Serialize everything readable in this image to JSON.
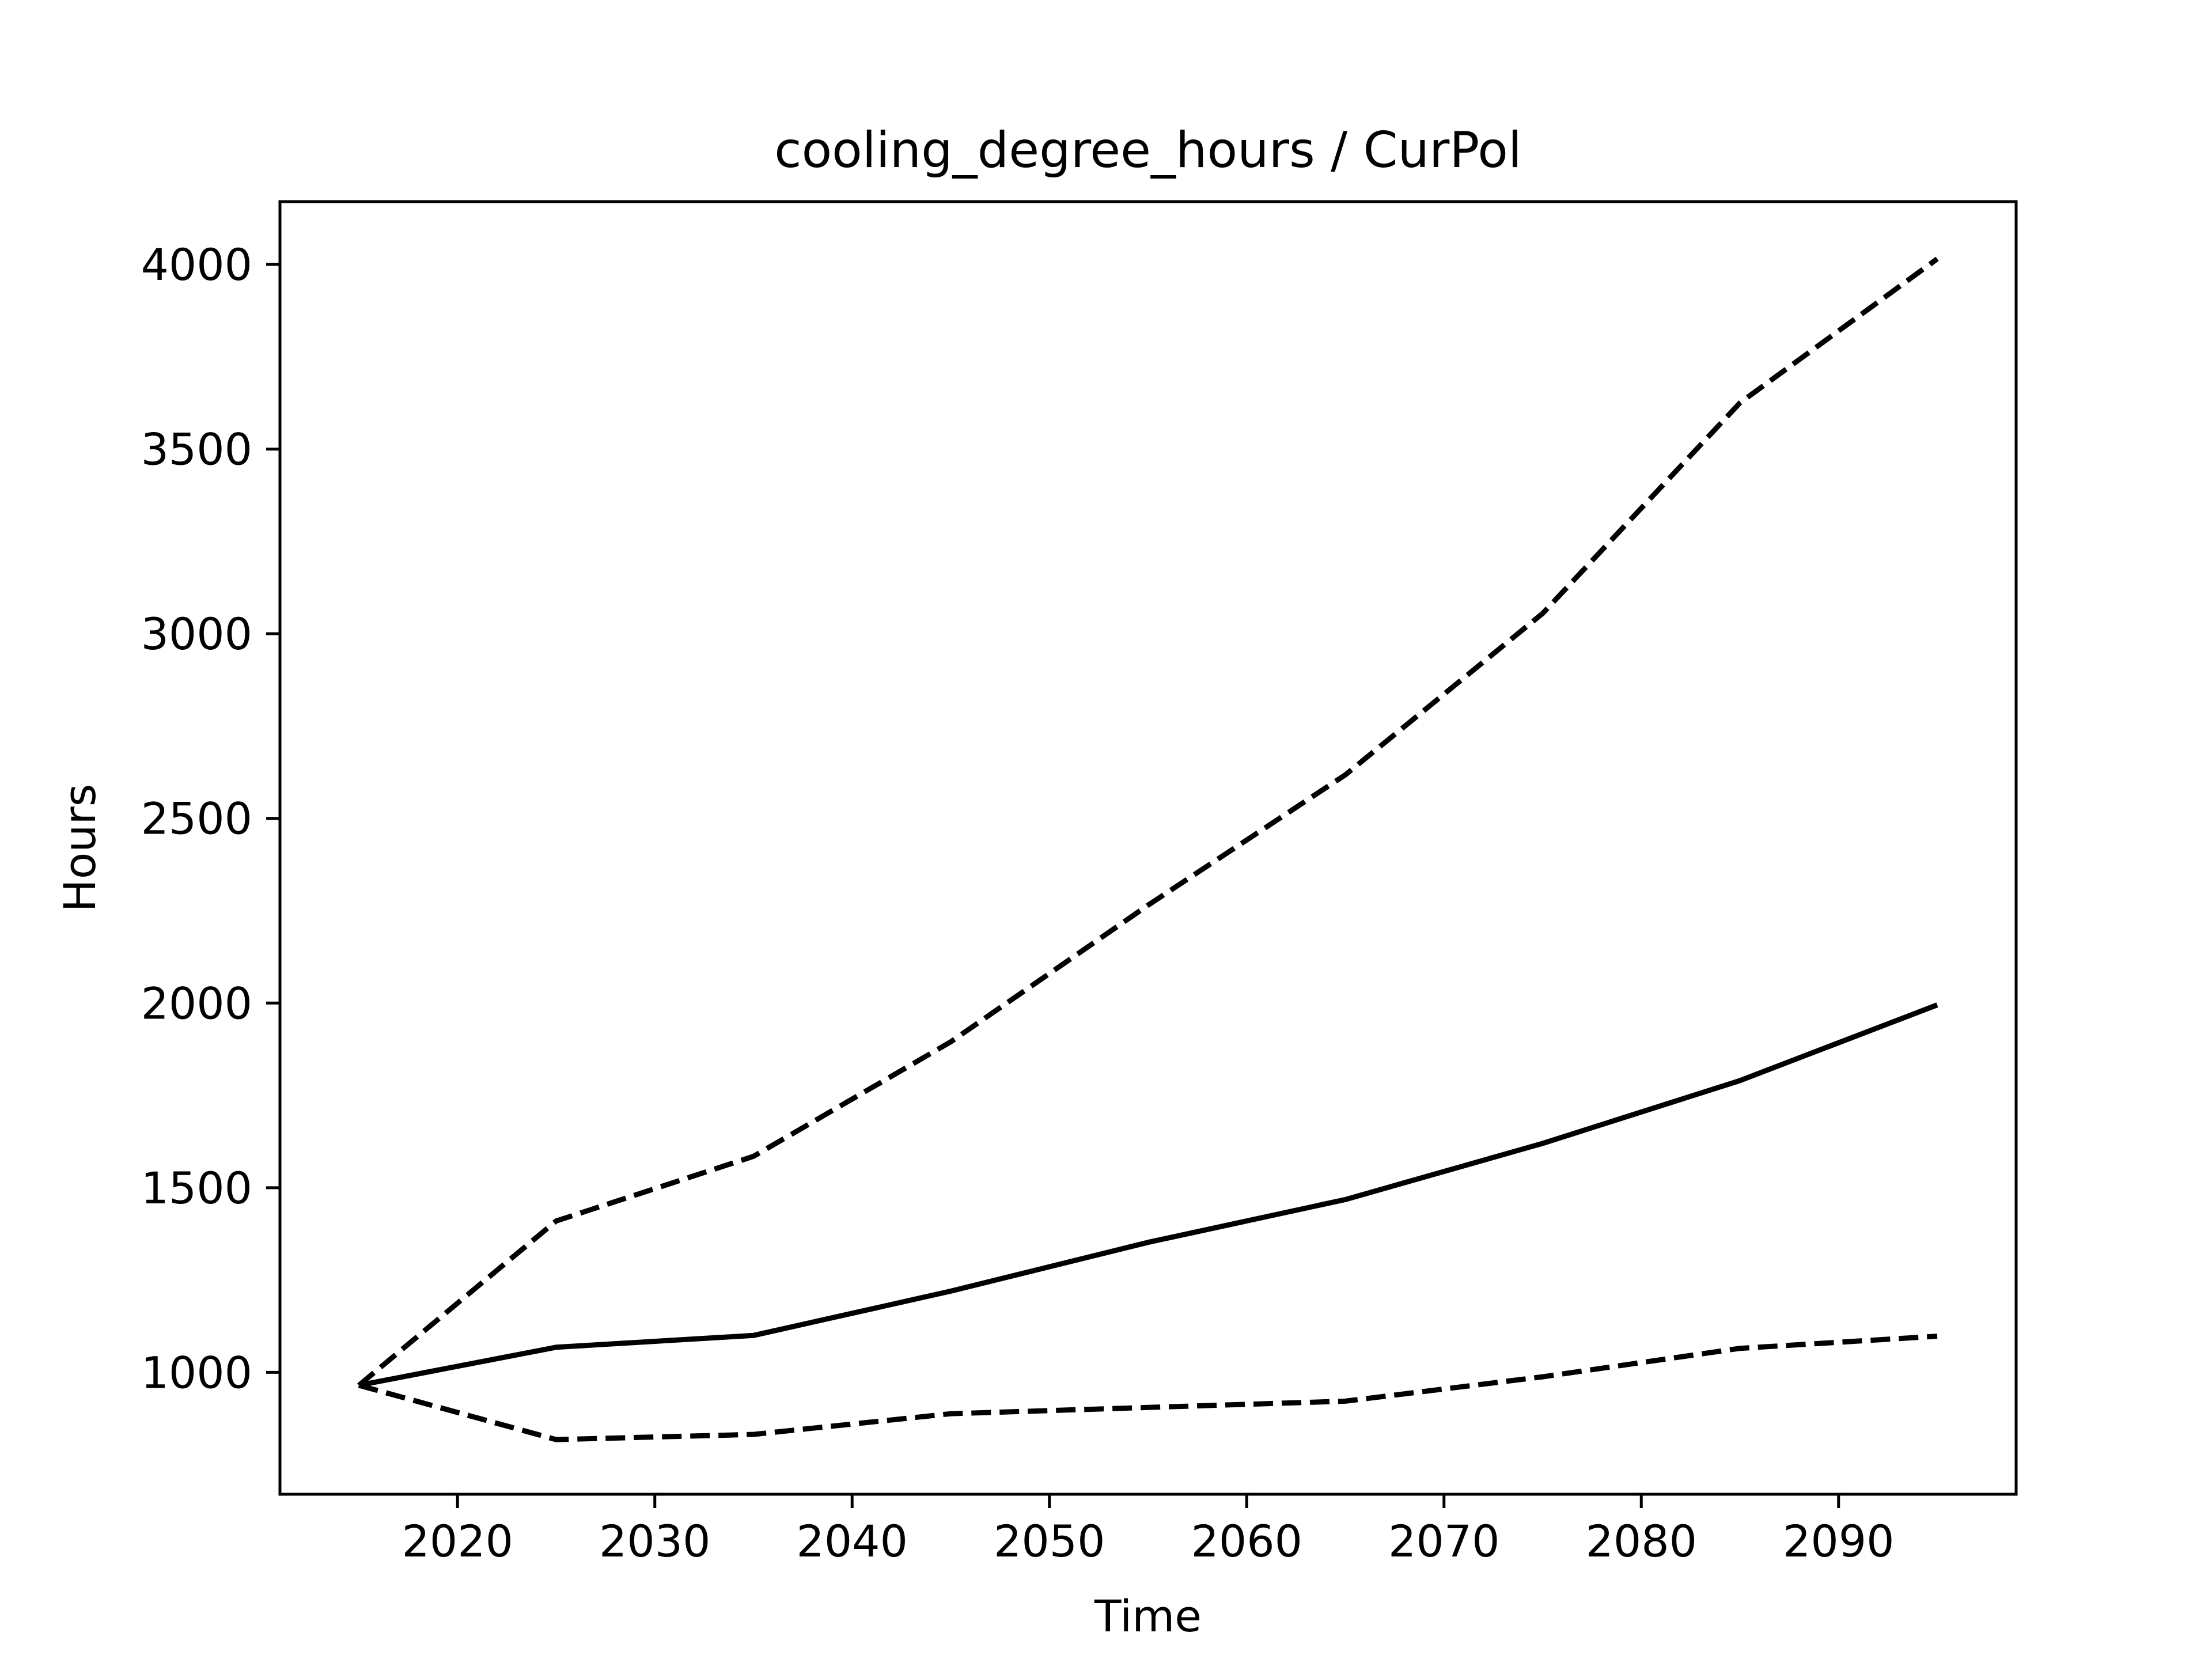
{
  "chart_data": {
    "type": "line",
    "title": "cooling_degree_hours / CurPol",
    "xlabel": "Time",
    "ylabel": "Hours",
    "xlim": [
      2011,
      2099
    ],
    "ylim": [
      670,
      4170
    ],
    "xticks": [
      2020,
      2030,
      2040,
      2050,
      2060,
      2070,
      2080,
      2090
    ],
    "yticks": [
      1000,
      1500,
      2000,
      2500,
      3000,
      3500,
      4000
    ],
    "grid": false,
    "legend": "none",
    "x": [
      2015,
      2025,
      2035,
      2045,
      2055,
      2065,
      2075,
      2085,
      2095
    ],
    "series": [
      {
        "style": "solid",
        "values": [
          965,
          1068,
          1100,
          1220,
          1352,
          1468,
          1620,
          1790,
          1995
        ]
      },
      {
        "style": "dashed",
        "values": [
          965,
          1410,
          1585,
          1895,
          2265,
          2618,
          3055,
          3625,
          4015
        ]
      },
      {
        "style": "dashed",
        "values": [
          965,
          818,
          832,
          888,
          905,
          922,
          988,
          1065,
          1098
        ]
      }
    ],
    "color": "#000000"
  }
}
